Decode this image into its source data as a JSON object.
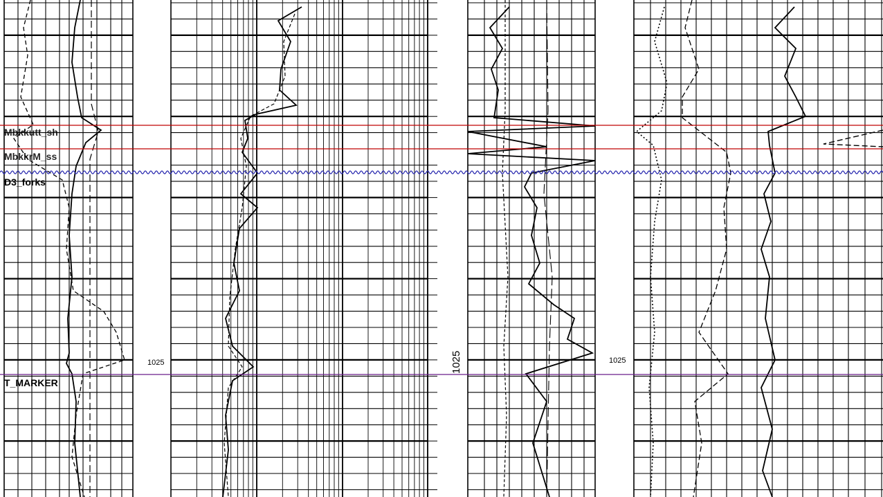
{
  "colors": {
    "background": "#ffffff",
    "grid": "#000000",
    "formation_red": "#c00000",
    "formation_blue": "#2a2ab0",
    "formation_purple": "#6a1f8a"
  },
  "formation_tops": [
    {
      "name": "Mbkkutt_sh",
      "style": "straight",
      "color": "#c00000"
    },
    {
      "name": "MbkkrM_ss",
      "style": "straight",
      "color": "#c00000"
    },
    {
      "name": "D3_forks",
      "style": "wavy",
      "color": "#2a2ab0"
    },
    {
      "name": "T_MARKER",
      "style": "straight",
      "color": "#6a1f8a"
    }
  ],
  "depth_labels": [
    {
      "text": "1025",
      "track": 1
    },
    {
      "text": "1025",
      "track": 2
    },
    {
      "text": "1025",
      "track": 3
    }
  ]
}
